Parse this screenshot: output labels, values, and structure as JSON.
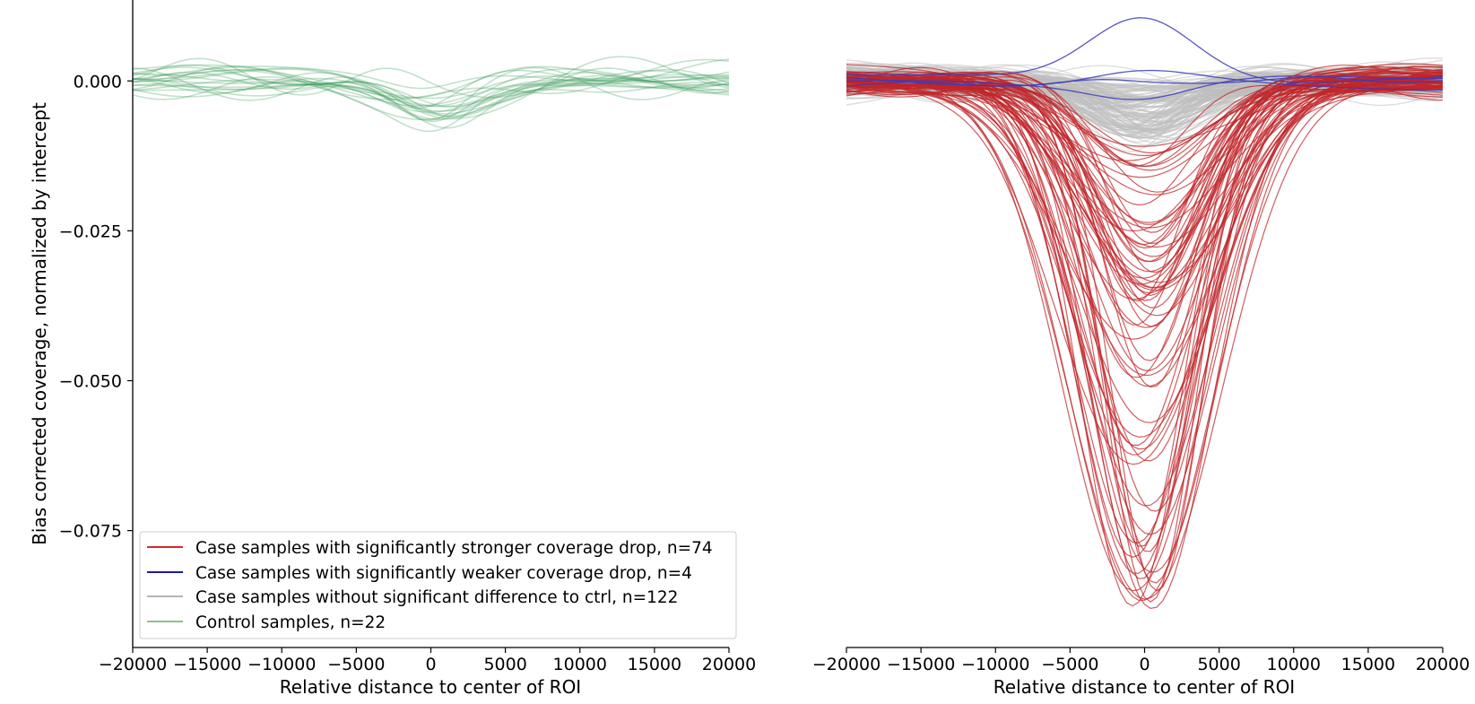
{
  "chart_data": [
    {
      "type": "line",
      "panel": "left",
      "xlabel": "Relative distance to center of ROI",
      "ylabel": "Bias corrected coverage, normalized by intercept",
      "xlim": [
        -20000,
        20000
      ],
      "ylim": [
        -0.0945,
        0.0135
      ],
      "xticks": [
        -20000,
        -15000,
        -10000,
        -5000,
        0,
        5000,
        10000,
        15000,
        20000
      ],
      "xtick_labels": [
        "−20000",
        "−15000",
        "−10000",
        "−5000",
        "0",
        "5000",
        "10000",
        "15000",
        "20000"
      ],
      "yticks": [
        0.0,
        -0.025,
        -0.05,
        -0.075
      ],
      "ytick_labels": [
        "0.000",
        "−0.025",
        "−0.050",
        "−0.075"
      ],
      "grid": false,
      "groups": [
        {
          "group": "control",
          "n": 22,
          "dip_range": [
            -0.0085,
            -0.0015
          ],
          "color": "#3a9a5b"
        }
      ],
      "legend": {
        "placement": "lower-left",
        "entries": [
          {
            "label": "Case samples with significantly stronger coverage drop, n=74",
            "color": "#d62728"
          },
          {
            "label": "Case samples with significantly weaker coverage drop, n=4",
            "color": "#1a1aa0"
          },
          {
            "label": "Case samples without significant difference to ctrl, n=122",
            "color": "#b4b4b4"
          },
          {
            "label": "Control samples, n=22",
            "color": "#8fbf8f"
          }
        ]
      }
    },
    {
      "type": "line",
      "panel": "right",
      "xlabel": "Relative distance to center of ROI",
      "xlim": [
        -20000,
        20000
      ],
      "ylim": [
        -0.0945,
        0.0135
      ],
      "xticks": [
        -20000,
        -15000,
        -10000,
        -5000,
        0,
        5000,
        10000,
        15000,
        20000
      ],
      "xtick_labels": [
        "−20000",
        "−15000",
        "−10000",
        "−5000",
        "0",
        "5000",
        "10000",
        "15000",
        "20000"
      ],
      "grid": false,
      "groups": [
        {
          "group": "no-difference",
          "n": 122,
          "dip_range": [
            -0.01,
            0.0
          ],
          "color": "#bdbdbd"
        },
        {
          "group": "weaker-drop",
          "n": 4,
          "peaks": [
            0.009,
            0.002,
            -0.001,
            -0.003
          ],
          "color": "#3b3bb8"
        },
        {
          "group": "stronger-drop",
          "n": 74,
          "dip_range": [
            -0.09,
            -0.011
          ],
          "color": "#c0262a"
        }
      ]
    }
  ]
}
